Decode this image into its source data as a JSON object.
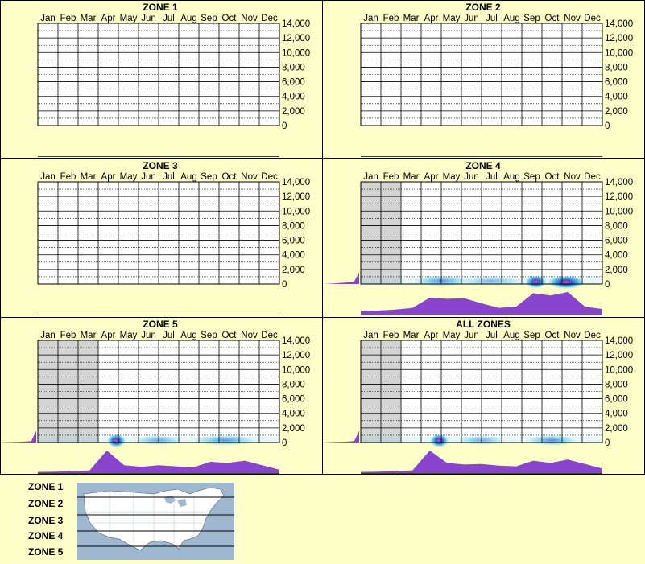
{
  "months": [
    "Jan",
    "Feb",
    "Mar",
    "Apr",
    "May",
    "Jun",
    "Jul",
    "Aug",
    "Sep",
    "Oct",
    "Nov",
    "Dec"
  ],
  "y_ticks": [
    "14,000",
    "12,000",
    "10,000",
    "8,000",
    "6,000",
    "4,000",
    "2,000",
    "0"
  ],
  "legend_labels": [
    "ZONE 1",
    "ZONE 2",
    "ZONE 3",
    "ZONE 4",
    "ZONE 5"
  ],
  "colors": {
    "background": "#fefec9",
    "profile_fill": "#8844cc",
    "density_low": "#6fd3e8",
    "density_mid": "#1f3fcf",
    "density_high": "#ff2a8a",
    "no_data_shade": "#d4d4d4",
    "map_water": "#9fb7cf",
    "map_land": "#ffffff"
  },
  "chart_data": [
    {
      "type": "heatmap",
      "title": "ZONE 1",
      "x_categories": [
        "Jan",
        "Feb",
        "Mar",
        "Apr",
        "May",
        "Jun",
        "Jul",
        "Aug",
        "Sep",
        "Oct",
        "Nov",
        "Dec"
      ],
      "ylim": [
        0,
        14000
      ],
      "grid": true,
      "shaded_months": [],
      "hotspots": [],
      "month_profile": [],
      "elevation_profile": []
    },
    {
      "type": "heatmap",
      "title": "ZONE 2",
      "x_categories": [
        "Jan",
        "Feb",
        "Mar",
        "Apr",
        "May",
        "Jun",
        "Jul",
        "Aug",
        "Sep",
        "Oct",
        "Nov",
        "Dec"
      ],
      "ylim": [
        0,
        14000
      ],
      "grid": true,
      "shaded_months": [],
      "hotspots": [],
      "month_profile": [],
      "elevation_profile": []
    },
    {
      "type": "heatmap",
      "title": "ZONE 3",
      "x_categories": [
        "Jan",
        "Feb",
        "Mar",
        "Apr",
        "May",
        "Jun",
        "Jul",
        "Aug",
        "Sep",
        "Oct",
        "Nov",
        "Dec"
      ],
      "ylim": [
        0,
        14000
      ],
      "grid": true,
      "shaded_months": [],
      "hotspots": [],
      "month_profile": [],
      "elevation_profile": []
    },
    {
      "type": "heatmap",
      "title": "ZONE 4",
      "x_categories": [
        "Jan",
        "Feb",
        "Mar",
        "Apr",
        "May",
        "Jun",
        "Jul",
        "Aug",
        "Sep",
        "Oct",
        "Nov",
        "Dec"
      ],
      "ylim": [
        0,
        14000
      ],
      "grid": true,
      "shaded_months": [
        0,
        1
      ],
      "hotspots": [
        {
          "month": 4.0,
          "elev": 400,
          "w": 1.8,
          "level": 0.55
        },
        {
          "month": 8.7,
          "elev": 300,
          "w": 0.7,
          "level": 0.95
        },
        {
          "month": 10.2,
          "elev": 250,
          "w": 1.2,
          "level": 1.0
        },
        {
          "month": 6.5,
          "elev": 400,
          "w": 2.0,
          "level": 0.25
        }
      ],
      "month_profile": [
        0.15,
        0.18,
        0.22,
        0.3,
        0.75,
        0.7,
        0.72,
        0.5,
        0.3,
        0.35,
        0.95,
        0.85,
        1.0,
        0.35,
        0.25
      ],
      "elevation_profile": [
        0.02,
        0.05,
        0.1,
        0.16,
        0.22,
        0.3,
        0.45,
        1.0
      ]
    },
    {
      "type": "heatmap",
      "title": "ZONE 5",
      "x_categories": [
        "Jan",
        "Feb",
        "Mar",
        "Apr",
        "May",
        "Jun",
        "Jul",
        "Aug",
        "Sep",
        "Oct",
        "Nov",
        "Dec"
      ],
      "ylim": [
        0,
        14000
      ],
      "grid": true,
      "shaded_months": [
        0,
        1,
        2
      ],
      "hotspots": [
        {
          "month": 3.9,
          "elev": 250,
          "w": 0.6,
          "level": 1.0
        },
        {
          "month": 6.0,
          "elev": 300,
          "w": 1.6,
          "level": 0.35
        },
        {
          "month": 9.3,
          "elev": 300,
          "w": 2.0,
          "level": 0.5
        }
      ],
      "month_profile": [
        0.05,
        0.06,
        0.08,
        0.12,
        1.0,
        0.35,
        0.28,
        0.35,
        0.3,
        0.25,
        0.5,
        0.45,
        0.55,
        0.35,
        0.15
      ],
      "elevation_profile": [
        0.03,
        0.06,
        0.08,
        0.1,
        0.13,
        0.17,
        0.25,
        1.0
      ]
    },
    {
      "type": "heatmap",
      "title": "ALL ZONES",
      "x_categories": [
        "Jan",
        "Feb",
        "Mar",
        "Apr",
        "May",
        "Jun",
        "Jul",
        "Aug",
        "Sep",
        "Oct",
        "Nov",
        "Dec"
      ],
      "ylim": [
        0,
        14000
      ],
      "grid": true,
      "shaded_months": [
        0,
        1
      ],
      "hotspots": [
        {
          "month": 3.9,
          "elev": 250,
          "w": 0.6,
          "level": 1.0
        },
        {
          "month": 6.0,
          "elev": 300,
          "w": 1.6,
          "level": 0.3
        },
        {
          "month": 9.5,
          "elev": 300,
          "w": 1.6,
          "level": 0.55
        }
      ],
      "month_profile": [
        0.05,
        0.06,
        0.08,
        0.12,
        1.0,
        0.45,
        0.38,
        0.4,
        0.33,
        0.3,
        0.55,
        0.45,
        0.6,
        0.4,
        0.2
      ],
      "elevation_profile": [
        0.03,
        0.06,
        0.08,
        0.1,
        0.13,
        0.17,
        0.25,
        1.0
      ]
    }
  ]
}
